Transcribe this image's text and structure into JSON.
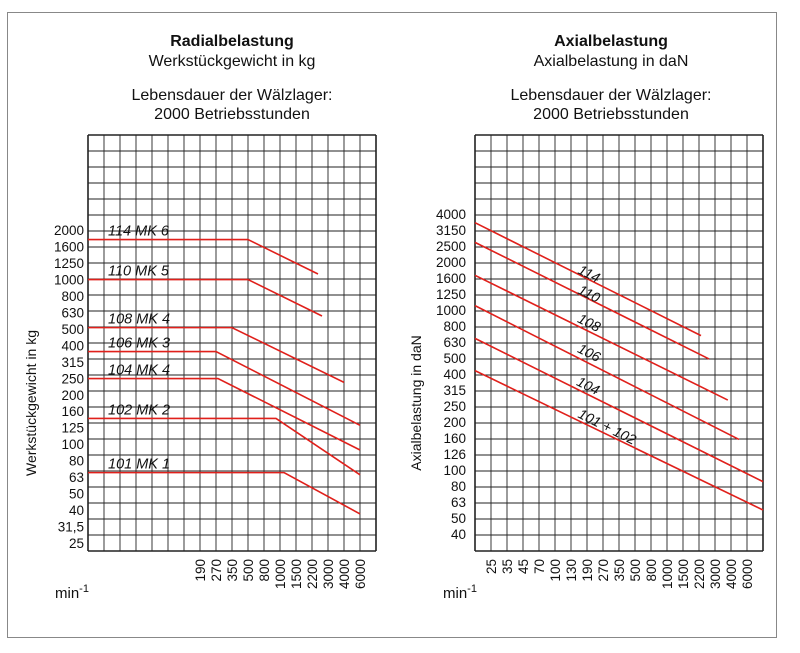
{
  "chart_data": [
    {
      "type": "line",
      "title": "Radialbelastung",
      "subtitle": "Werkstückgewicht in kg",
      "note_line1": "Lebensdauer der Wälzlager:",
      "note_line2": "2000 Betriebsstunden",
      "ylabel": "Werkstückgewicht in kg",
      "xlabel": "min",
      "xlabel_sup": "-1",
      "y_scale": "log",
      "ylim": [
        25,
        2000
      ],
      "grid": true,
      "line_color": "#e0201b",
      "y_ticks": [
        "2000",
        "1600",
        "1250",
        "1000",
        "800",
        "630",
        "500",
        "400",
        "315",
        "250",
        "200",
        "160",
        "125",
        "100",
        "80",
        "63",
        "50",
        "40",
        "31,5",
        "25"
      ],
      "x_ticks": [
        "190",
        "270",
        "350",
        "500",
        "800",
        "1000",
        "1500",
        "2200",
        "3000",
        "4000",
        "6000"
      ],
      "series": [
        {
          "name": "114 MK 6",
          "flat_load": 1750,
          "break_rpm": 500,
          "end_rpm": 2500,
          "end_load": 1080
        },
        {
          "name": "110 MK 5",
          "flat_load": 1000,
          "break_rpm": 500,
          "end_rpm": 2700,
          "end_load": 600
        },
        {
          "name": "108 MK 4",
          "flat_load": 510,
          "break_rpm": 350,
          "end_rpm": 4000,
          "end_load": 237
        },
        {
          "name": "106 MK 3",
          "flat_load": 365,
          "break_rpm": 270,
          "end_rpm": 6000,
          "end_load": 130
        },
        {
          "name": "104 MK 4",
          "flat_load": 250,
          "break_rpm": 280,
          "end_rpm": 6000,
          "end_load": 92
        },
        {
          "name": "102 MK 2",
          "flat_load": 143,
          "break_rpm": 950,
          "end_rpm": 6000,
          "end_load": 65
        },
        {
          "name": "101 MK 1",
          "flat_load": 67,
          "break_rpm": 1130,
          "end_rpm": 6000,
          "end_load": 37.6
        }
      ]
    },
    {
      "type": "line",
      "title": "Axialbelastung",
      "subtitle": "Axialbelastung in daN",
      "note_line1": "Lebensdauer der Wälzlager:",
      "note_line2": "2000 Betriebsstunden",
      "ylabel": "Axialbelastung in daN",
      "xlabel": "min",
      "xlabel_sup": "-1",
      "y_scale": "log",
      "ylim": [
        40,
        4000
      ],
      "grid": true,
      "line_color": "#e0201b",
      "y_ticks": [
        "4000",
        "3150",
        "2500",
        "2000",
        "1600",
        "1250",
        "1000",
        "800",
        "630",
        "500",
        "400",
        "315",
        "250",
        "200",
        "160",
        "126",
        "100",
        "80",
        "63",
        "50",
        "40"
      ],
      "x_ticks": [
        "25",
        "35",
        "45",
        "70",
        "100",
        "130",
        "190",
        "270",
        "350",
        "500",
        "800",
        "1000",
        "1500",
        "2200",
        "3000",
        "4000",
        "6000"
      ],
      "series": [
        {
          "name": "114",
          "start_load": 3530,
          "end_rpm": 2300,
          "end_load": 695
        },
        {
          "name": "110",
          "start_load": 2660,
          "end_rpm": 2700,
          "end_load": 497
        },
        {
          "name": "108",
          "start_load": 1656,
          "end_rpm": 3800,
          "end_load": 275
        },
        {
          "name": "106",
          "start_load": 1070,
          "end_rpm": 5000,
          "end_load": 156
        },
        {
          "name": "104",
          "start_load": 668,
          "end_rpm": null,
          "end_load": 85
        },
        {
          "name": "101 + 102",
          "start_load": 420,
          "end_rpm": null,
          "end_load": 56.5
        }
      ]
    }
  ]
}
